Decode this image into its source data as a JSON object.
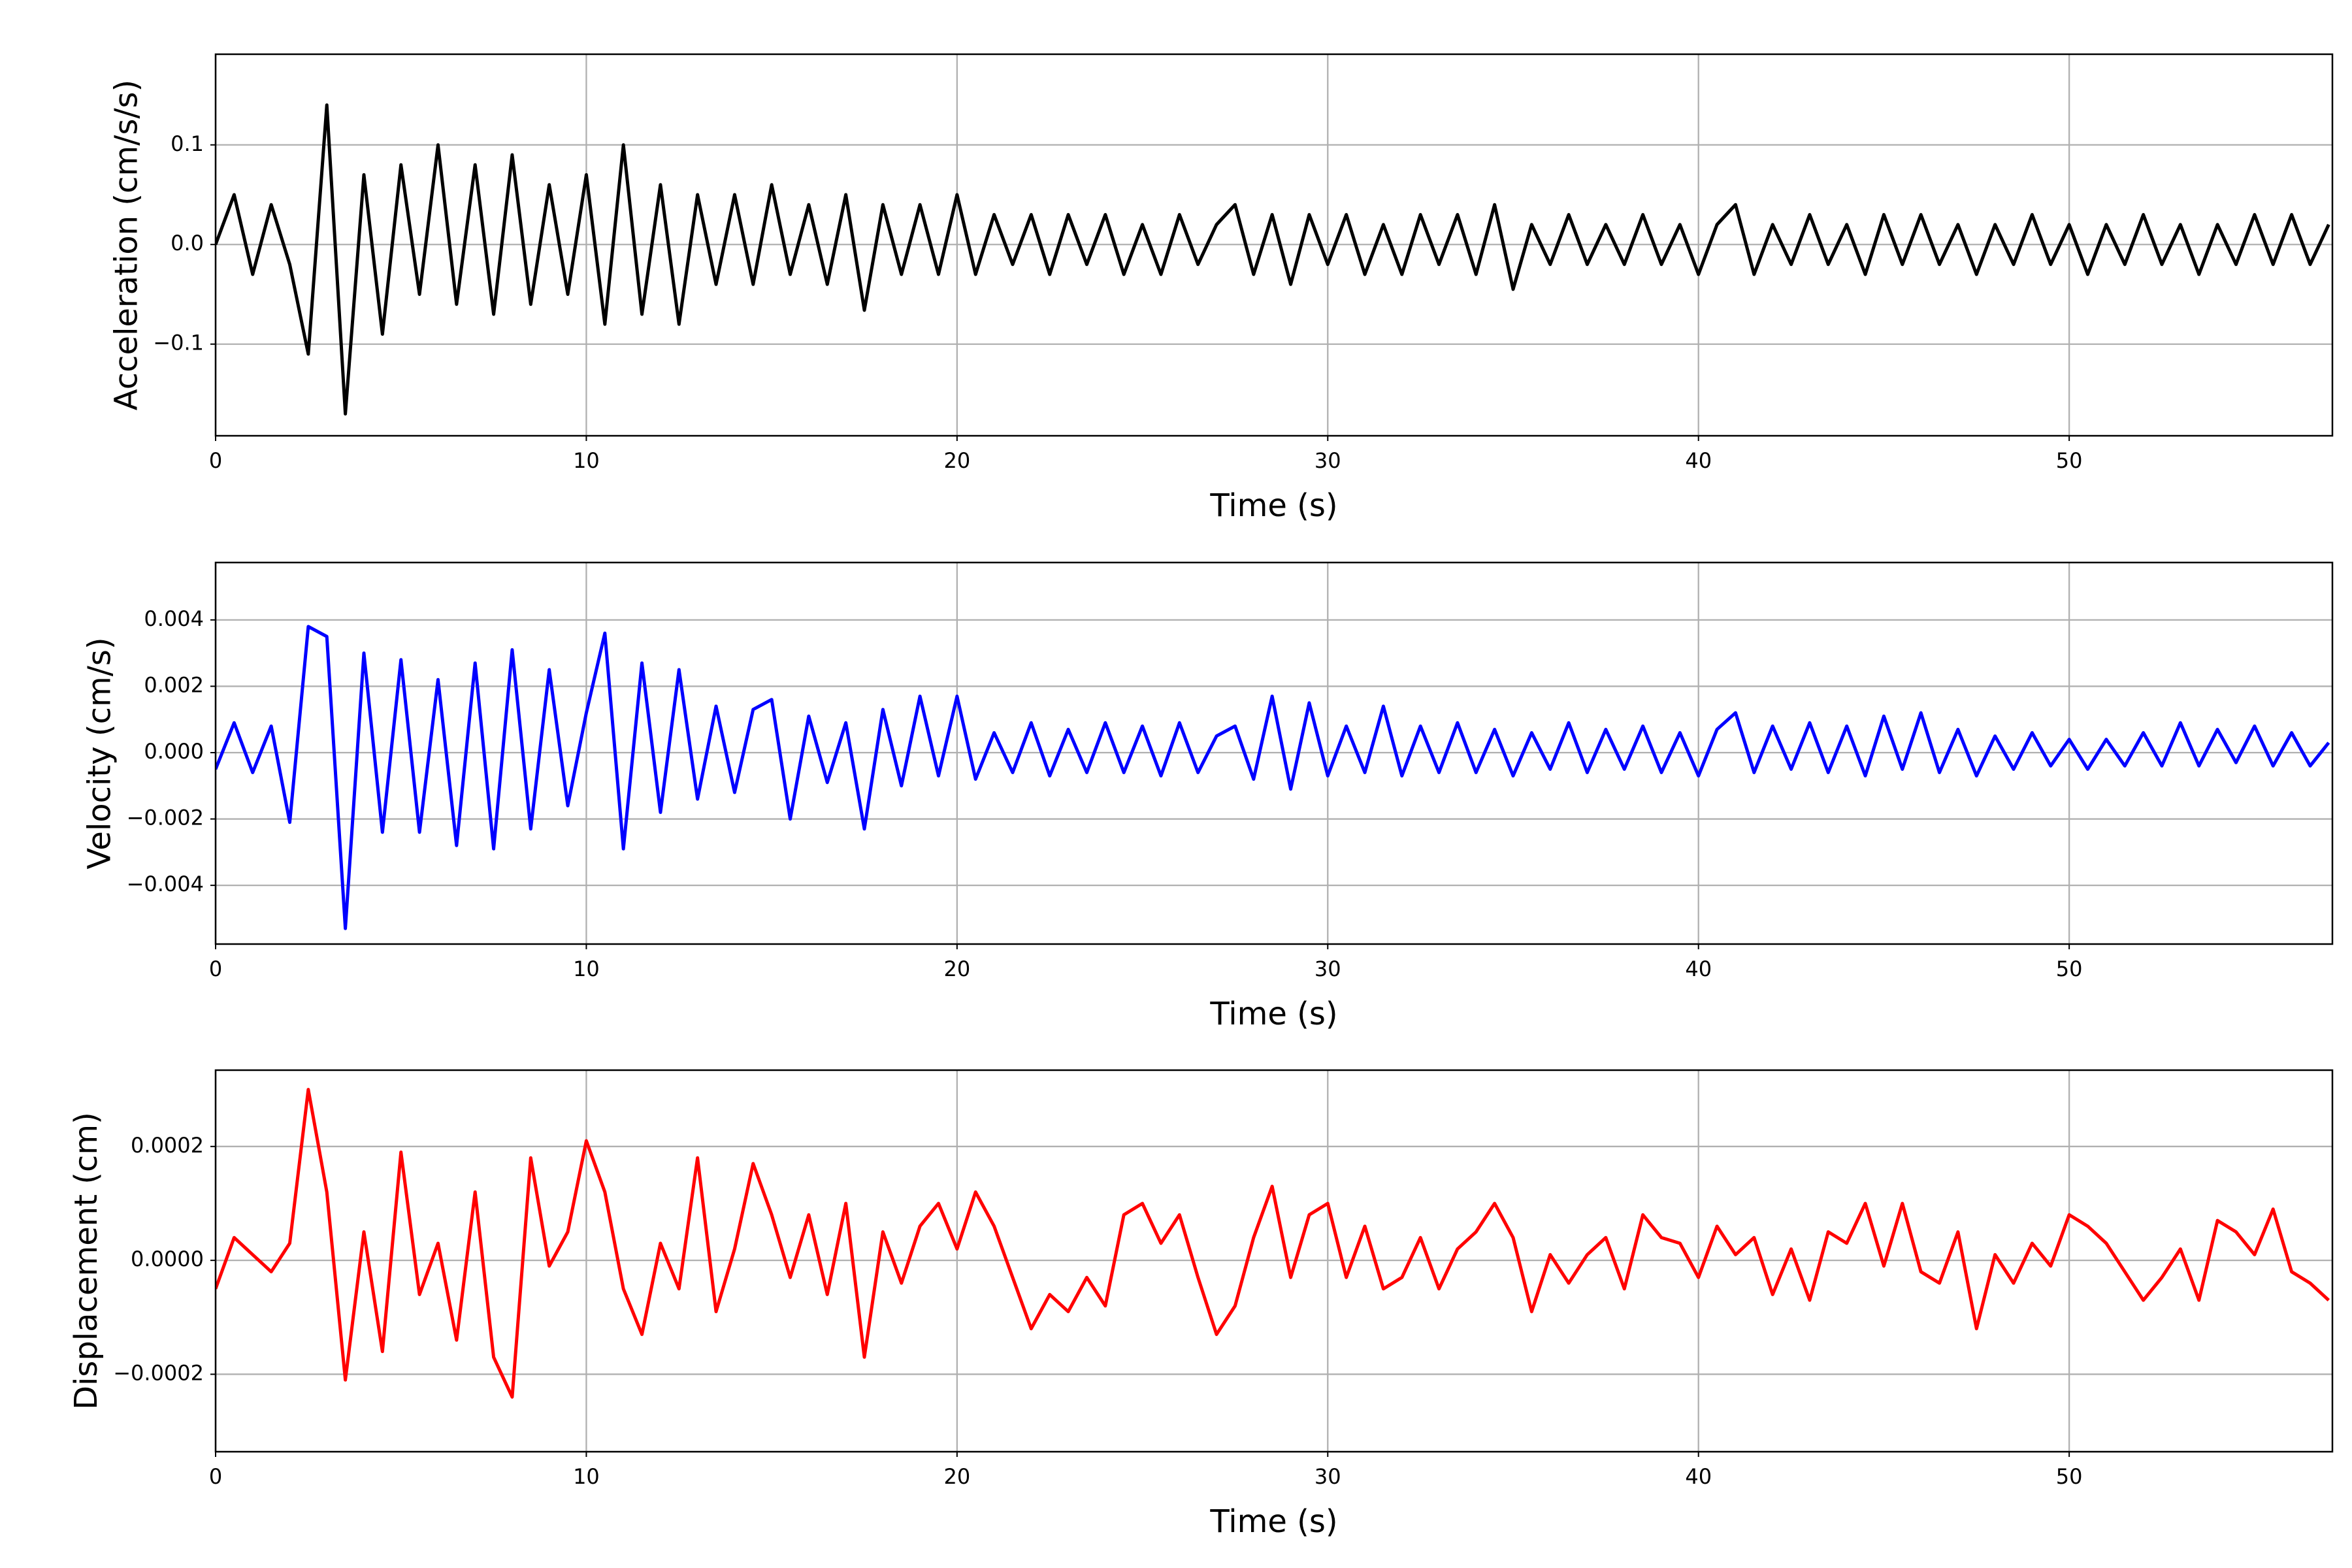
{
  "chart_data": [
    {
      "type": "line",
      "ylabel": "Acceleration (cm/s/s)",
      "xlabel": "Time (s)",
      "color": "#000000",
      "grid": true,
      "xlim": [
        0,
        57.1
      ],
      "xticks": [
        0,
        10,
        20,
        30,
        40,
        50
      ],
      "ylim": [
        -0.192,
        0.191
      ],
      "yticks": [
        {
          "value": -0.1,
          "label": "−0.1"
        },
        {
          "value": 0,
          "label": "0.0"
        },
        0.1
      ],
      "x": [
        0,
        0.5,
        1,
        1.5,
        2,
        2.5,
        3,
        3.5,
        4,
        4.5,
        5,
        5.5,
        6,
        6.5,
        7,
        7.5,
        8,
        8.5,
        9,
        9.5,
        10,
        10.5,
        11,
        11.5,
        12,
        12.5,
        13,
        13.5,
        14,
        14.5,
        15,
        15.5,
        16,
        16.5,
        17,
        17.5,
        18,
        18.5,
        19,
        19.5,
        20,
        20.5,
        21,
        21.5,
        22,
        22.5,
        23,
        23.5,
        24,
        24.5,
        25,
        25.5,
        26,
        26.5,
        27,
        27.5,
        28,
        28.5,
        29,
        29.5,
        30,
        30.5,
        31,
        31.5,
        32,
        32.5,
        33,
        33.5,
        34,
        34.5,
        35,
        35.5,
        36,
        36.5,
        37,
        37.5,
        38,
        38.5,
        39,
        39.5,
        40,
        40.5,
        41,
        41.5,
        42,
        42.5,
        43,
        43.5,
        44,
        44.5,
        45,
        45.5,
        46,
        46.5,
        47,
        47.5,
        48,
        48.5,
        49,
        49.5,
        50,
        50.5,
        51,
        51.5,
        52,
        52.5,
        53,
        53.5,
        54,
        54.5,
        55,
        55.5,
        56,
        56.5,
        57
      ],
      "values": [
        0,
        0.05,
        -0.03,
        0.04,
        -0.02,
        -0.11,
        0.14,
        -0.17,
        0.07,
        -0.09,
        0.08,
        -0.05,
        0.1,
        -0.06,
        0.08,
        -0.07,
        0.09,
        -0.06,
        0.06,
        -0.05,
        0.07,
        -0.08,
        0.1,
        -0.07,
        0.06,
        -0.08,
        0.05,
        -0.04,
        0.05,
        -0.04,
        0.06,
        -0.03,
        0.04,
        -0.04,
        0.05,
        -0.066,
        0.04,
        -0.03,
        0.04,
        -0.03,
        0.05,
        -0.03,
        0.03,
        -0.02,
        0.03,
        -0.03,
        0.03,
        -0.02,
        0.03,
        -0.03,
        0.02,
        -0.03,
        0.03,
        -0.02,
        0.02,
        0.04,
        -0.03,
        0.03,
        -0.04,
        0.03,
        -0.02,
        0.03,
        -0.03,
        0.02,
        -0.03,
        0.03,
        -0.02,
        0.03,
        -0.03,
        0.04,
        -0.045,
        0.02,
        -0.02,
        0.03,
        -0.02,
        0.02,
        -0.02,
        0.03,
        -0.02,
        0.02,
        -0.03,
        0.02,
        0.04,
        -0.03,
        0.02,
        -0.02,
        0.03,
        -0.02,
        0.02,
        -0.03,
        0.03,
        -0.02,
        0.03,
        -0.02,
        0.02,
        -0.03,
        0.02,
        -0.02,
        0.03,
        -0.02,
        0.02,
        -0.03,
        0.02,
        -0.02,
        0.03,
        -0.02,
        0.02,
        -0.03,
        0.02,
        -0.02,
        0.03,
        -0.02,
        0.03,
        -0.02,
        0.02
      ]
    },
    {
      "type": "line",
      "ylabel": "Velocity (cm/s)",
      "xlabel": "Time (s)",
      "color": "#0000ff",
      "grid": true,
      "xlim": [
        0,
        57.1
      ],
      "xticks": [
        0,
        10,
        20,
        30,
        40,
        50
      ],
      "ylim": [
        -0.00577,
        0.00573
      ],
      "yticks": [
        {
          "value": -0.004,
          "label": "−0.004"
        },
        {
          "value": -0.002,
          "label": "−0.002"
        },
        {
          "value": 0,
          "label": "0.000"
        },
        0.002,
        0.004
      ],
      "x": [
        0,
        0.5,
        1,
        1.5,
        2,
        2.5,
        3,
        3.5,
        4,
        4.5,
        5,
        5.5,
        6,
        6.5,
        7,
        7.5,
        8,
        8.5,
        9,
        9.5,
        10,
        10.5,
        11,
        11.5,
        12,
        12.5,
        13,
        13.5,
        14,
        14.5,
        15,
        15.5,
        16,
        16.5,
        17,
        17.5,
        18,
        18.5,
        19,
        19.5,
        20,
        20.5,
        21,
        21.5,
        22,
        22.5,
        23,
        23.5,
        24,
        24.5,
        25,
        25.5,
        26,
        26.5,
        27,
        27.5,
        28,
        28.5,
        29,
        29.5,
        30,
        30.5,
        31,
        31.5,
        32,
        32.5,
        33,
        33.5,
        34,
        34.5,
        35,
        35.5,
        36,
        36.5,
        37,
        37.5,
        38,
        38.5,
        39,
        39.5,
        40,
        40.5,
        41,
        41.5,
        42,
        42.5,
        43,
        43.5,
        44,
        44.5,
        45,
        45.5,
        46,
        46.5,
        47,
        47.5,
        48,
        48.5,
        49,
        49.5,
        50,
        50.5,
        51,
        51.5,
        52,
        52.5,
        53,
        53.5,
        54,
        54.5,
        55,
        55.5,
        56,
        56.5,
        57
      ],
      "values": [
        -0.0005,
        0.0009,
        -0.0006,
        0.0008,
        -0.0021,
        0.0038,
        0.0035,
        -0.0053,
        0.003,
        -0.0024,
        0.0028,
        -0.0024,
        0.0022,
        -0.0028,
        0.0027,
        -0.0029,
        0.0031,
        -0.0023,
        0.0025,
        -0.0016,
        0.0012,
        0.0036,
        -0.0029,
        0.0027,
        -0.0018,
        0.0025,
        -0.0014,
        0.0014,
        -0.0012,
        0.0013,
        0.0016,
        -0.002,
        0.0011,
        -0.0009,
        0.0009,
        -0.0023,
        0.0013,
        -0.001,
        0.0017,
        -0.0007,
        0.0017,
        -0.0008,
        0.0006,
        -0.0006,
        0.0009,
        -0.0007,
        0.0007,
        -0.0006,
        0.0009,
        -0.0006,
        0.0008,
        -0.0007,
        0.0009,
        -0.0006,
        0.0005,
        0.0008,
        -0.0008,
        0.0017,
        -0.0011,
        0.0015,
        -0.0007,
        0.0008,
        -0.0006,
        0.0014,
        -0.0007,
        0.0008,
        -0.0006,
        0.0009,
        -0.0006,
        0.0007,
        -0.0007,
        0.0006,
        -0.0005,
        0.0009,
        -0.0006,
        0.0007,
        -0.0005,
        0.0008,
        -0.0006,
        0.0006,
        -0.0007,
        0.0007,
        0.0012,
        -0.0006,
        0.0008,
        -0.0005,
        0.0009,
        -0.0006,
        0.0008,
        -0.0007,
        0.0011,
        -0.0005,
        0.0012,
        -0.0006,
        0.0007,
        -0.0007,
        0.0005,
        -0.0005,
        0.0006,
        -0.0004,
        0.0004,
        -0.0005,
        0.0004,
        -0.0004,
        0.0006,
        -0.0004,
        0.0009,
        -0.0004,
        0.0007,
        -0.0003,
        0.0008,
        -0.0004,
        0.0006,
        -0.0004,
        0.0003
      ]
    },
    {
      "type": "line",
      "ylabel": "Displacement (cm)",
      "xlabel": "Time (s)",
      "color": "#ff0000",
      "grid": true,
      "xlim": [
        0,
        57.1
      ],
      "xticks": [
        0,
        10,
        20,
        30,
        40,
        50
      ],
      "ylim": [
        -0.000336,
        0.000334
      ],
      "yticks": [
        {
          "value": -0.0002,
          "label": "−0.0002"
        },
        {
          "value": 0,
          "label": "0.0000"
        },
        0.0002
      ],
      "x": [
        0,
        0.5,
        1,
        1.5,
        2,
        2.5,
        3,
        3.5,
        4,
        4.5,
        5,
        5.5,
        6,
        6.5,
        7,
        7.5,
        8,
        8.5,
        9,
        9.5,
        10,
        10.5,
        11,
        11.5,
        12,
        12.5,
        13,
        13.5,
        14,
        14.5,
        15,
        15.5,
        16,
        16.5,
        17,
        17.5,
        18,
        18.5,
        19,
        19.5,
        20,
        20.5,
        21,
        21.5,
        22,
        22.5,
        23,
        23.5,
        24,
        24.5,
        25,
        25.5,
        26,
        26.5,
        27,
        27.5,
        28,
        28.5,
        29,
        29.5,
        30,
        30.5,
        31,
        31.5,
        32,
        32.5,
        33,
        33.5,
        34,
        34.5,
        35,
        35.5,
        36,
        36.5,
        37,
        37.5,
        38,
        38.5,
        39,
        39.5,
        40,
        40.5,
        41,
        41.5,
        42,
        42.5,
        43,
        43.5,
        44,
        44.5,
        45,
        45.5,
        46,
        46.5,
        47,
        47.5,
        48,
        48.5,
        49,
        49.5,
        50,
        50.5,
        51,
        51.5,
        52,
        52.5,
        53,
        53.5,
        54,
        54.5,
        55,
        55.5,
        56,
        56.5,
        57
      ],
      "values": [
        -5e-05,
        4e-05,
        1e-05,
        -2e-05,
        3e-05,
        0.0003,
        0.00012,
        -0.00021,
        5e-05,
        -0.00016,
        0.00019,
        -6e-05,
        3e-05,
        -0.00014,
        0.00012,
        -0.00017,
        -0.00024,
        0.00018,
        -1e-05,
        5e-05,
        0.00021,
        0.00012,
        -5e-05,
        -0.00013,
        3e-05,
        -5e-05,
        0.00018,
        -9e-05,
        2e-05,
        0.00017,
        8e-05,
        -3e-05,
        8e-05,
        -6e-05,
        0.0001,
        -0.00017,
        5e-05,
        -4e-05,
        6e-05,
        0.0001,
        2e-05,
        0.00012,
        6e-05,
        -3e-05,
        -0.00012,
        -6e-05,
        -9e-05,
        -3e-05,
        -8e-05,
        8e-05,
        0.0001,
        3e-05,
        8e-05,
        -3e-05,
        -0.00013,
        -8e-05,
        4e-05,
        0.00013,
        -3e-05,
        8e-05,
        0.0001,
        -3e-05,
        6e-05,
        -5e-05,
        -3e-05,
        4e-05,
        -5e-05,
        2e-05,
        5e-05,
        0.0001,
        4e-05,
        -9e-05,
        1e-05,
        -4e-05,
        1e-05,
        4e-05,
        -5e-05,
        8e-05,
        4e-05,
        3e-05,
        -3e-05,
        6e-05,
        1e-05,
        4e-05,
        -6e-05,
        2e-05,
        -7e-05,
        5e-05,
        3e-05,
        0.0001,
        -1e-05,
        0.0001,
        -2e-05,
        -4e-05,
        5e-05,
        -0.00012,
        1e-05,
        -4e-05,
        3e-05,
        -1e-05,
        8e-05,
        6e-05,
        3e-05,
        -2e-05,
        -7e-05,
        -3e-05,
        2e-05,
        -7e-05,
        7e-05,
        5e-05,
        1e-05,
        9e-05,
        -2e-05,
        -4e-05,
        -7e-05
      ]
    }
  ]
}
